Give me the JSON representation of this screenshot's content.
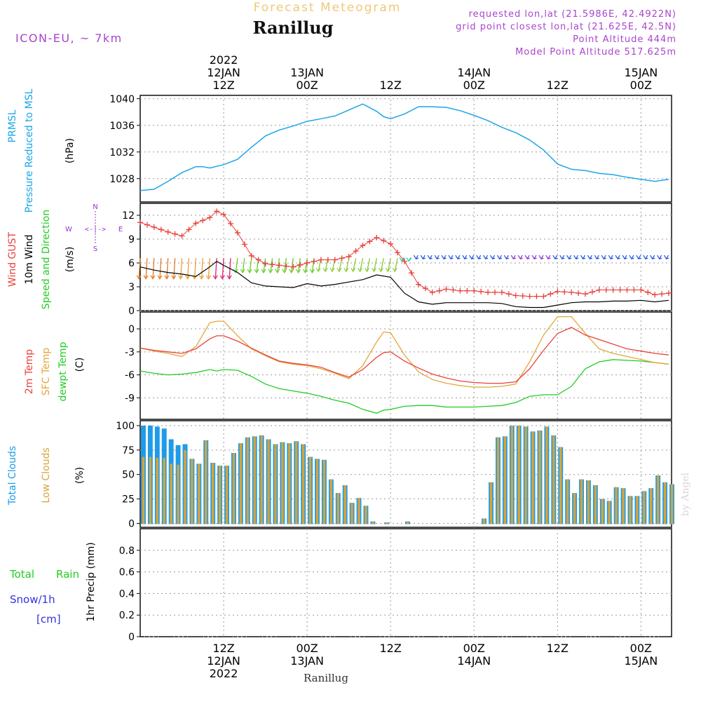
{
  "header": {
    "product_title": "Forecast Meteogram",
    "location": "Ranillug",
    "model": "ICON-EU, ~ 7km",
    "requested_point": "requested lon,lat (21.5986E, 42.4922N)",
    "grid_point": "grid point closest lon,lat (21.625E, 42.5N)",
    "point_altitude": "Point Altitude 444m",
    "model_altitude": "Model Point Altitude 517.625m",
    "footer_location": "Ranillug",
    "watermark": "by Angel"
  },
  "colors": {
    "pressure": "#1ba6e8",
    "gust": "#e8413c",
    "wind": "#000000",
    "temp": "#e8413c",
    "sfc": "#e3a63a",
    "dewpt": "#22cc22",
    "total_clouds": "#1e9be8",
    "low_clouds": "#d6a43a",
    "rain": "#22cc22",
    "snow": "#3333dd",
    "compass": "#9933cc",
    "meta": "#aa44cc",
    "title_orange": "#f0c878"
  },
  "time_axis": {
    "top": [
      {
        "hour": 12,
        "lines": [
          "2022",
          "12JAN",
          "12Z"
        ]
      },
      {
        "hour": 24,
        "lines": [
          "13JAN",
          "00Z"
        ]
      },
      {
        "hour": 36,
        "lines": [
          "12Z"
        ]
      },
      {
        "hour": 48,
        "lines": [
          "14JAN",
          "00Z"
        ]
      },
      {
        "hour": 60,
        "lines": [
          "12Z"
        ]
      },
      {
        "hour": 72,
        "lines": [
          "15JAN",
          "00Z"
        ]
      }
    ],
    "bottom": [
      {
        "hour": 12,
        "lines": [
          "12Z",
          "12JAN",
          "2022"
        ]
      },
      {
        "hour": 24,
        "lines": [
          "00Z",
          "13JAN"
        ]
      },
      {
        "hour": 36,
        "lines": [
          "12Z"
        ]
      },
      {
        "hour": 48,
        "lines": [
          "00Z",
          "14JAN"
        ]
      },
      {
        "hour": 60,
        "lines": [
          "12Z"
        ]
      },
      {
        "hour": 72,
        "lines": [
          "00Z",
          "15JAN"
        ]
      }
    ]
  },
  "panels": {
    "pressure": {
      "label1": "PRMSL",
      "label2": "Pressure Reduced to MSL",
      "unit": "(hPa)",
      "ticks": [
        "1028",
        "1032",
        "1036",
        "1040"
      ]
    },
    "wind": {
      "label1": "Wind GUST",
      "label2": "10m Wind",
      "label3": "Speed and Direction",
      "unit": "(m/s)",
      "ticks": [
        "0",
        "3",
        "6",
        "9",
        "12"
      ],
      "compass": {
        "n": "N",
        "s": "S",
        "w": "W",
        "e": "E",
        "arrow": "<-|->"
      }
    },
    "temp": {
      "label1": "2m Temp",
      "label2": "SFC Temp",
      "label3": "dewpt Temp",
      "unit": "(C)",
      "ticks": [
        "0",
        "-3",
        "-6",
        "-9"
      ]
    },
    "clouds": {
      "label1": "Total Clouds",
      "label2": "Low Clouds",
      "unit": "(%)",
      "ticks": [
        "0",
        "25",
        "50",
        "75",
        "100"
      ]
    },
    "precip": {
      "label1": "Total",
      "label1b": "Rain",
      "label2": "Snow/1h",
      "label3": "[cm]",
      "ylabel": "1hr Precip (mm)",
      "ticks": [
        "0",
        "0.2",
        "0.4",
        "0.6",
        "0.8"
      ]
    }
  },
  "chart_data": [
    {
      "type": "line",
      "title": "PRMSL Pressure Reduced to MSL",
      "ylabel": "hPa",
      "ylim": [
        1024.5,
        1040.5
      ],
      "x_hours": [
        0,
        2,
        4,
        6,
        8,
        9,
        10,
        12,
        14,
        16,
        18,
        20,
        22,
        24,
        26,
        28,
        30,
        32,
        34,
        35,
        36,
        38,
        40,
        42,
        44,
        46,
        48,
        50,
        52,
        54,
        56,
        58,
        60,
        62,
        64,
        66,
        68,
        70,
        72,
        74,
        76
      ],
      "series": [
        {
          "name": "PRMSL",
          "values": [
            1026.2,
            1026.4,
            1027.6,
            1028.9,
            1029.8,
            1029.8,
            1029.6,
            1030.1,
            1030.9,
            1032.7,
            1034.4,
            1035.3,
            1035.9,
            1036.6,
            1037.0,
            1037.4,
            1038.3,
            1039.2,
            1038.1,
            1037.3,
            1037.0,
            1037.7,
            1038.8,
            1038.8,
            1038.7,
            1038.2,
            1037.5,
            1036.7,
            1035.7,
            1034.9,
            1033.8,
            1032.3,
            1030.2,
            1029.4,
            1029.2,
            1028.8,
            1028.6,
            1028.2,
            1027.9,
            1027.6,
            1027.9
          ]
        }
      ]
    },
    {
      "type": "line",
      "title": "Wind GUST / 10m Wind Speed and Direction",
      "ylabel": "m/s",
      "ylim": [
        0,
        13.5
      ],
      "x_hours": [
        0,
        2,
        4,
        6,
        8,
        10,
        11,
        12,
        14,
        16,
        18,
        20,
        22,
        24,
        26,
        28,
        30,
        32,
        34,
        36,
        38,
        40,
        42,
        44,
        46,
        48,
        50,
        52,
        54,
        56,
        58,
        60,
        62,
        64,
        66,
        68,
        70,
        72,
        74,
        76
      ],
      "series": [
        {
          "name": "Wind GUST",
          "values": [
            11.1,
            10.5,
            9.9,
            9.4,
            11.0,
            11.7,
            12.5,
            12.1,
            9.8,
            6.9,
            5.9,
            5.7,
            5.5,
            6.0,
            6.4,
            6.4,
            6.8,
            8.2,
            9.2,
            8.4,
            6.2,
            3.3,
            2.3,
            2.7,
            2.5,
            2.5,
            2.3,
            2.3,
            1.9,
            1.8,
            1.8,
            2.4,
            2.3,
            2.1,
            2.6,
            2.6,
            2.6,
            2.6,
            2.0,
            2.2
          ]
        },
        {
          "name": "10m Wind",
          "values": [
            5.5,
            5.1,
            4.8,
            4.6,
            4.3,
            5.5,
            6.2,
            5.7,
            4.8,
            3.5,
            3.1,
            3.0,
            2.9,
            3.4,
            3.1,
            3.3,
            3.6,
            3.9,
            4.5,
            4.2,
            2.2,
            1.1,
            0.8,
            1.0,
            1.0,
            1.0,
            1.0,
            0.9,
            0.5,
            0.4,
            0.4,
            0.7,
            1.0,
            1.1,
            1.1,
            1.2,
            1.2,
            1.3,
            1.1,
            1.3
          ]
        }
      ]
    },
    {
      "type": "line",
      "title": "2m Temp / SFC Temp / dewpt Temp",
      "ylabel": "C",
      "ylim": [
        -11.8,
        2.2
      ],
      "x_hours": [
        0,
        2,
        4,
        6,
        8,
        10,
        11,
        12,
        14,
        16,
        18,
        20,
        22,
        24,
        26,
        28,
        30,
        32,
        34,
        35,
        36,
        38,
        40,
        42,
        44,
        46,
        48,
        50,
        52,
        54,
        56,
        58,
        60,
        62,
        64,
        66,
        68,
        70,
        72,
        74,
        76
      ],
      "series": [
        {
          "name": "2m Temp",
          "values": [
            -2.5,
            -2.8,
            -3.0,
            -3.2,
            -2.6,
            -1.3,
            -0.9,
            -0.9,
            -1.6,
            -2.5,
            -3.4,
            -4.2,
            -4.5,
            -4.7,
            -5.0,
            -5.7,
            -6.3,
            -5.3,
            -3.7,
            -3.1,
            -3.0,
            -4.2,
            -5.1,
            -5.9,
            -6.4,
            -6.8,
            -7.0,
            -7.1,
            -7.1,
            -6.9,
            -5.2,
            -2.8,
            -0.6,
            0.2,
            -0.8,
            -1.4,
            -2.0,
            -2.6,
            -2.9,
            -3.2,
            -3.4
          ]
        },
        {
          "name": "SFC Temp",
          "values": [
            -2.5,
            -2.9,
            -3.2,
            -3.6,
            -2.3,
            0.8,
            1.0,
            1.0,
            -0.9,
            -2.6,
            -3.5,
            -4.3,
            -4.6,
            -4.8,
            -5.2,
            -5.8,
            -6.5,
            -4.8,
            -1.7,
            -0.4,
            -0.5,
            -3.4,
            -5.6,
            -6.6,
            -7.1,
            -7.4,
            -7.6,
            -7.6,
            -7.5,
            -7.2,
            -4.3,
            -0.8,
            1.6,
            1.6,
            -0.6,
            -2.6,
            -3.2,
            -3.6,
            -4.0,
            -4.4,
            -4.6
          ]
        },
        {
          "name": "dewpt Temp",
          "values": [
            -5.5,
            -5.8,
            -6.0,
            -5.9,
            -5.7,
            -5.3,
            -5.5,
            -5.3,
            -5.4,
            -6.2,
            -7.2,
            -7.8,
            -8.1,
            -8.4,
            -8.8,
            -9.3,
            -9.7,
            -10.5,
            -11.0,
            -10.6,
            -10.5,
            -10.1,
            -10.0,
            -10.0,
            -10.2,
            -10.2,
            -10.2,
            -10.1,
            -10.0,
            -9.6,
            -8.8,
            -8.6,
            -8.6,
            -7.5,
            -5.2,
            -4.3,
            -4.0,
            -4.1,
            -4.2,
            -4.4,
            -4.6
          ]
        }
      ]
    },
    {
      "type": "bar",
      "title": "Total Clouds / Low Clouds",
      "ylabel": "%",
      "ylim": [
        -4,
        105
      ],
      "x_hours": [
        0,
        1,
        2,
        3,
        4,
        5,
        6,
        7,
        8,
        9,
        10,
        11,
        12,
        13,
        14,
        15,
        16,
        17,
        18,
        19,
        20,
        21,
        22,
        23,
        24,
        25,
        26,
        27,
        28,
        29,
        30,
        31,
        32,
        33,
        34,
        35,
        36,
        37,
        38,
        39,
        40,
        41,
        42,
        43,
        44,
        45,
        46,
        47,
        48,
        49,
        50,
        51,
        52,
        53,
        54,
        55,
        56,
        57,
        58,
        59,
        60,
        61,
        62,
        63,
        64,
        65,
        66,
        67,
        68,
        69,
        70,
        71,
        72,
        73,
        74,
        75,
        76
      ],
      "series": [
        {
          "name": "Total Clouds",
          "values": [
            100,
            100,
            99,
            97,
            86,
            80,
            81,
            66,
            61,
            85,
            62,
            59,
            59,
            72,
            82,
            88,
            89,
            90,
            86,
            81,
            83,
            82,
            84,
            81,
            68,
            66,
            65,
            45,
            31,
            39,
            21,
            26,
            18,
            2,
            0,
            1,
            0,
            0,
            2,
            0,
            0,
            0,
            0,
            0,
            0,
            0,
            0,
            0,
            0,
            5,
            42,
            88,
            89,
            100,
            100,
            99,
            94,
            95,
            99,
            90,
            78,
            45,
            31,
            45,
            44,
            39,
            25,
            23,
            37,
            36,
            28,
            28,
            33,
            36,
            49,
            42,
            40
          ]
        },
        {
          "name": "Low Clouds",
          "values": [
            68,
            68,
            67,
            67,
            61,
            60,
            75,
            66,
            61,
            85,
            62,
            59,
            59,
            72,
            82,
            88,
            89,
            90,
            86,
            81,
            83,
            82,
            84,
            81,
            68,
            66,
            65,
            45,
            31,
            39,
            21,
            26,
            18,
            2,
            0,
            1,
            0,
            0,
            2,
            0,
            0,
            0,
            0,
            0,
            0,
            0,
            0,
            0,
            0,
            5,
            42,
            88,
            89,
            100,
            100,
            99,
            94,
            95,
            99,
            90,
            78,
            45,
            31,
            45,
            44,
            39,
            25,
            23,
            37,
            36,
            28,
            28,
            33,
            36,
            49,
            42,
            40
          ]
        }
      ]
    },
    {
      "type": "bar",
      "title": "1hr Precip",
      "ylabel": "1hr Precip (mm)",
      "ylim": [
        0,
        1.0
      ],
      "series": [
        {
          "name": "Total Rain",
          "values": []
        },
        {
          "name": "Snow/1h",
          "values": []
        }
      ]
    }
  ]
}
